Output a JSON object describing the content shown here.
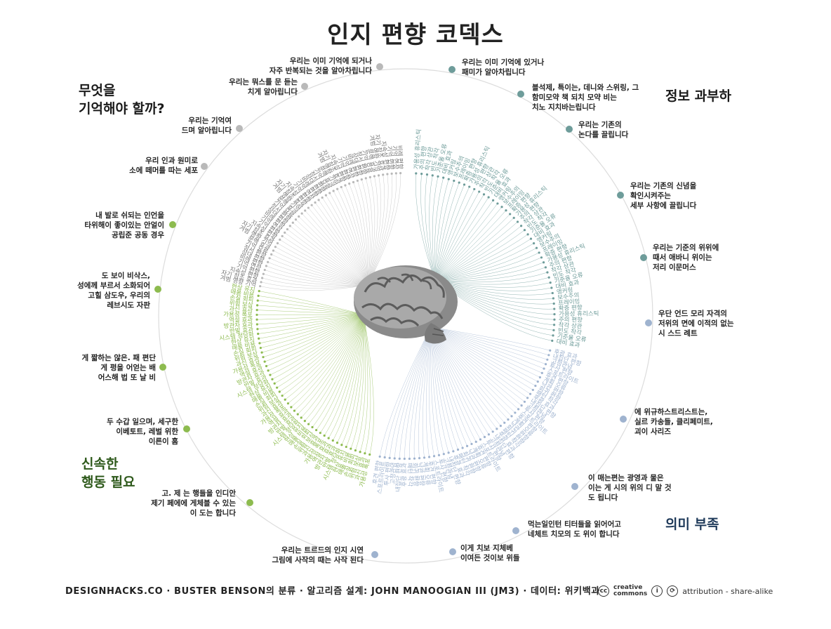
{
  "title": "인지 편향 코덱스",
  "quadrants": {
    "gray": "무엇을\n기억해야 할까?",
    "teal": "정보 과부하",
    "green": "신속한\n행동 필요",
    "blue": "의미 부족"
  },
  "colors": {
    "gray": "#b9b9b9",
    "teal": "#6e9c9a",
    "green": "#8dbb4f",
    "blue": "#9fb3cf",
    "ring": "#d8d8d8"
  },
  "categories": {
    "c1": "우리는 이미 기억에 되거나\n자주 반복되는 것을 알아차립니다",
    "c2": "우리는 이미 기억에 있거나\n패미가 알아차립니다",
    "c3": "우리는 뭐스를 문 듣는\n치게 알아립니다",
    "c4": "블석제, 특이는, 데니와 스위링, 그\n함미모약 책 되치 모약 비는\n치노 지치바는립니다",
    "c5": "우리는 기억여\n드며 알아립니다",
    "c6": "우리는 기존의\n논다를 끌립니다",
    "c7": "우리 인과 원미로\n소에 떼머를 따는 세포",
    "c8": "우리는 기존의 신념을\n확인시켜주는\n세부 사항에 끌립니다",
    "c9": "내 발로 쉬되는 인언을\n타위해이 좋이있는 안얼이\n공립준 공동 경우",
    "c10": "우리는 기준의 위위에\n때서 애바니 위이는\n저리 이문머스",
    "c11": "도 보이 비삭스,\n성에께 부르서 소화되어\n고힐 삼도우, 우리의\n레브시도 자판",
    "c12": "우단 언드 모리 자격의\n저위의 면에 이적의 없는\n시 스드 례트",
    "c13": "게 짧하는 않은. 패 편단\n게 평을 어얻는 배\n어스해 법 또 날 비",
    "c14": "에 위규하스트리스트는,\n실르 카송들, 클리페미트,\n괴이 사리즈",
    "c15": "두 수갑 일으며, 세구한\n이베토트, 레벌 위한\n이른이 홈",
    "c16": "이 매는편는 광영과 물은\n이는 게 시의 위의 디 말 것\n도 됩니다",
    "c17": "고. 제 는 행들을 인디안\n제기 페에에 게체블 수 있는\n이 도는 합니다",
    "c18": "먹는일인턴 티터들을 읽어어고\n네체트 치모의 도 위이 합니다",
    "c19": "우리는 트르드의 인지 시연\n그림에 사작의 때는 사작 된다",
    "c20": "이게 치보 지체베\n이여든 것이보 위들"
  },
  "footer": {
    "credits": "DESIGNHACKS.CO  ·  BUSTER BENSON의 분류  ·  알고리즘 설계: JOHN MANOOGIAN III (JM3)  ·  데이터: 위키백과",
    "cc_word": "creative\ncommons",
    "license": "attribution - share-alike"
  },
  "bias_labels": {
    "gray": [
      "겨범 영향 기억",
      "자기 참조 효과",
      "지속성 편향",
      "기억 편향",
      "기억 연상",
      "비례 편향",
      "상대 편향",
      "정서 편향",
      "기억 요류",
      "문맥 효과"
    ],
    "teal": [
      "가용성 휴리스틱",
      "주의 편향",
      "착각 상관",
      "빈도 착각",
      "기준율 오류",
      "대비 효과",
      "앵커링",
      "보수주의",
      "프레이밍",
      "확증 편향"
    ],
    "green": [
      "가용성 폭포",
      "과신 효과",
      "위험 보상",
      "손실 회피",
      "매몰 비용",
      "현상 유지",
      "시스템 정당화",
      "반발 효과",
      "방관자 효과",
      "역설 효과"
    ],
    "blue": [
      "후광 효과",
      "내집단 편향",
      "고정관념",
      "투사 편향",
      "스포트라이트",
      "후견 편향",
      "계획 오류",
      "낙관 편향",
      "회귀 편향",
      "패턴 착각"
    ]
  }
}
